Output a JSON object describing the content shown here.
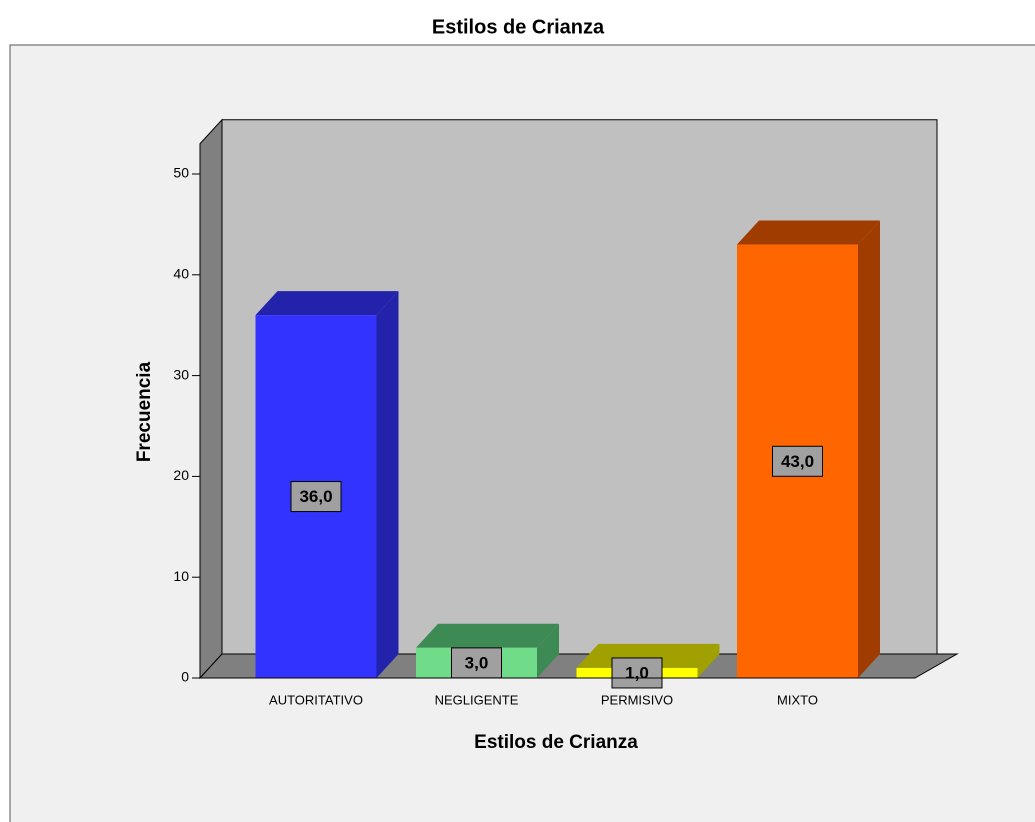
{
  "chart_data": {
    "type": "bar",
    "title": "Estilos de Crianza",
    "xlabel": "Estilos de Crianza",
    "ylabel": "Frecuencia",
    "categories": [
      "AUTORITATIVO",
      "NEGLIGENTE",
      "PERMISIVO",
      "MIXTO"
    ],
    "values": [
      36,
      3,
      1,
      43
    ],
    "value_labels": [
      "36,0",
      "3,0",
      "1,0",
      "43,0"
    ],
    "colors": [
      "#3333ff",
      "#70dc8a",
      "#ffff00",
      "#ff6600"
    ],
    "side_colors": [
      "#2222aa",
      "#3e8a55",
      "#a0a000",
      "#a03c00"
    ],
    "ylim": [
      0,
      53
    ],
    "yticks": [
      0,
      10,
      20,
      30,
      40,
      50
    ]
  }
}
